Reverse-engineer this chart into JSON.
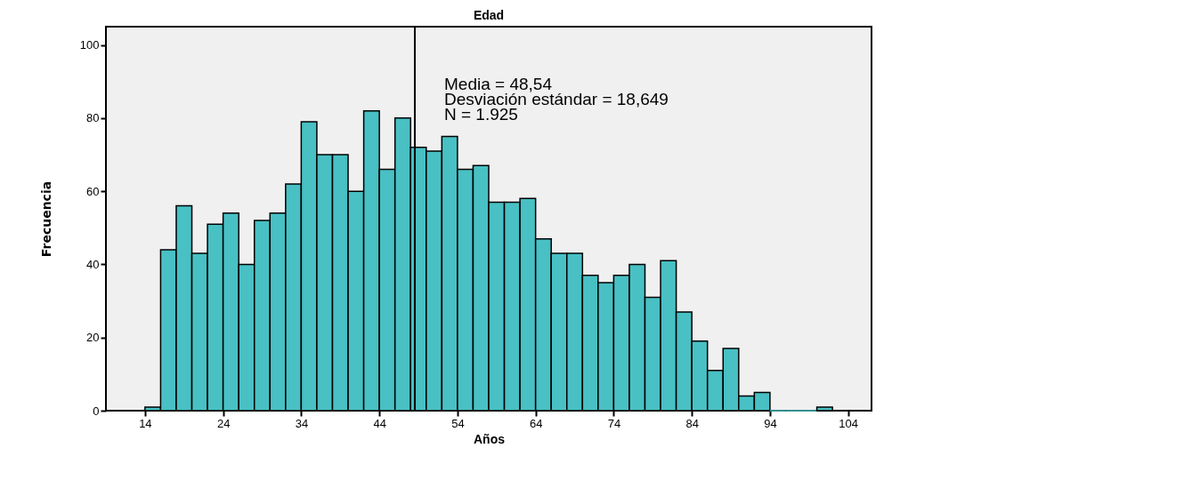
{
  "chart_data": {
    "type": "histogram",
    "title": "Edad",
    "xlabel": "Años",
    "ylabel": "Frecuencia",
    "bins": [
      14,
      16,
      18,
      20,
      22,
      24,
      26,
      28,
      30,
      32,
      34,
      36,
      38,
      40,
      42,
      44,
      46,
      48,
      50,
      52,
      54,
      56,
      58,
      60,
      62,
      64,
      66,
      68,
      70,
      72,
      74,
      76,
      78,
      80,
      82,
      84,
      86,
      88,
      90,
      92,
      94,
      96,
      98,
      100,
      102
    ],
    "values": [
      1,
      44,
      56,
      43,
      51,
      54,
      40,
      52,
      54,
      62,
      79,
      70,
      70,
      60,
      82,
      66,
      80,
      72,
      71,
      75,
      66,
      67,
      57,
      57,
      58,
      47,
      43,
      43,
      37,
      35,
      37,
      40,
      31,
      41,
      27,
      19,
      11,
      17,
      4,
      5,
      0,
      0,
      0,
      1
    ],
    "color": "#48c0c4",
    "xlim": [
      9,
      107
    ],
    "xticks": [
      14,
      24,
      34,
      44,
      54,
      64,
      74,
      84,
      94,
      104
    ],
    "ylim": [
      0,
      105
    ],
    "yticks": [
      0,
      20,
      40,
      60,
      80,
      100
    ],
    "ref_lines": [
      {
        "axis": "x",
        "value": 48.54
      }
    ],
    "annotations": [
      "Media = 48,54",
      "Desviación estándar = 18,649",
      "N = 1.925"
    ]
  }
}
